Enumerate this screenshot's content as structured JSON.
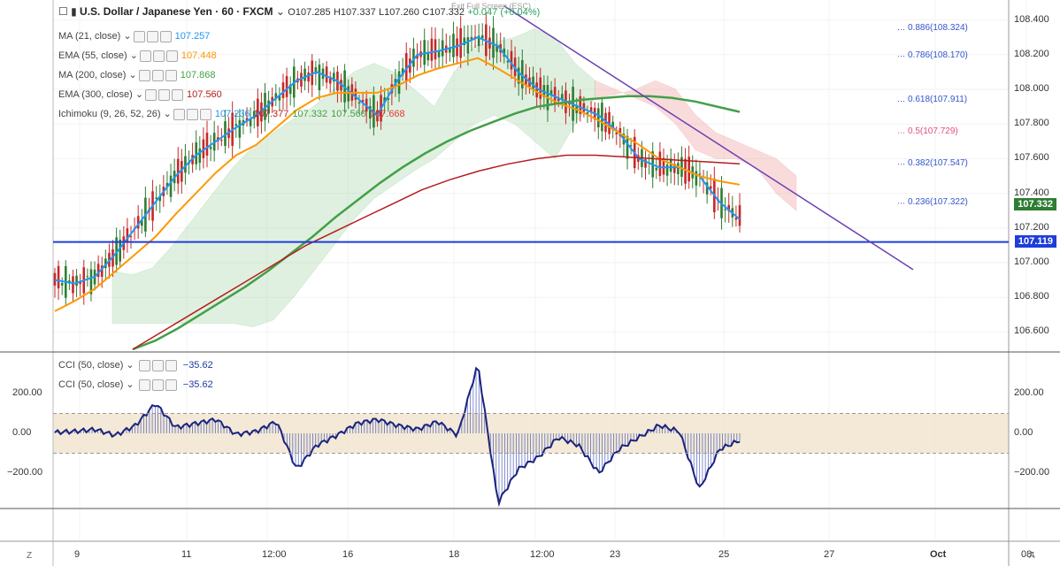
{
  "header": {
    "symbol": "U.S. Dollar / Japanese Yen · 60 · FXCM",
    "open_label": "O",
    "open": "107.285",
    "high_label": "H",
    "high": "107.337",
    "low_label": "L",
    "low": "107.260",
    "close_label": "C",
    "close": "107.332",
    "change": "+0.047 (+0.04%)",
    "exit_fullscreen": "Exit Full Screen (ESC)"
  },
  "indicators": [
    {
      "label": "MA (21, close)",
      "value": "107.257",
      "color": "#2196f3"
    },
    {
      "label": "EMA (55, close)",
      "value": "107.448",
      "color": "#ff9800"
    },
    {
      "label": "MA (200, close)",
      "value": "107.868",
      "color": "#43a047"
    },
    {
      "label": "EMA (300, close)",
      "value": "107.560",
      "color": "#b71c1c"
    },
    {
      "label": "Ichimoku (9, 26, 52, 26)",
      "values": [
        "107.236",
        "107.377",
        "107.332",
        "107.560",
        "107.668"
      ],
      "colors": [
        "#2196f3",
        "#b71c1c",
        "#43a047",
        "#43a047",
        "#e53935"
      ]
    }
  ],
  "cci_legends": [
    {
      "label": "CCI (50, close)",
      "value": "−35.62"
    },
    {
      "label": "CCI (50, close)",
      "value": "−35.62"
    }
  ],
  "price_tags": {
    "last": "107.332",
    "last_color": "#2e7d32",
    "hline": "107.119",
    "hline_color": "#1e3ddb"
  },
  "fib_levels": [
    {
      "label": "0.886(108.324)",
      "price": 108.324,
      "color": "#3355cc"
    },
    {
      "label": "0.786(108.170)",
      "price": 108.17,
      "color": "#3355cc"
    },
    {
      "label": "0.618(107.911)",
      "price": 107.911,
      "color": "#3355cc"
    },
    {
      "label": "0.5(107.729)",
      "price": 107.729,
      "color": "#e0507a"
    },
    {
      "label": "0.382(107.547)",
      "price": 107.547,
      "color": "#3355cc"
    },
    {
      "label": "0.236(107.322)",
      "price": 107.322,
      "color": "#3355cc"
    }
  ],
  "corner_left": "Z",
  "corner_right": "A",
  "chart_data": [
    {
      "type": "line",
      "ylim": [
        106.5,
        108.5
      ],
      "yticks": [
        "108.400",
        "108.200",
        "108.000",
        "107.800",
        "107.600",
        "107.400",
        "107.200",
        "107.000",
        "106.800",
        "106.600"
      ],
      "xticks": [
        "9",
        "11",
        "12:00",
        "16",
        "18",
        "12:00",
        "23",
        "25",
        "27",
        "Oct",
        "08:"
      ],
      "horizontal_line": 107.119,
      "series": [
        {
          "name": "MA (21, close)",
          "values": [
            106.9,
            106.88,
            106.92,
            107.05,
            107.2,
            107.35,
            107.5,
            107.62,
            107.7,
            107.78,
            107.85,
            107.95,
            108.05,
            108.1,
            108.05,
            107.95,
            107.85,
            108.05,
            108.2,
            108.22,
            108.25,
            108.3,
            108.25,
            108.1,
            108.0,
            107.95,
            107.9,
            107.85,
            107.75,
            107.6,
            107.55,
            107.55,
            107.5,
            107.35,
            107.25
          ]
        },
        {
          "name": "EMA (55, close)",
          "values": [
            106.72,
            106.78,
            106.85,
            106.95,
            107.05,
            107.15,
            107.28,
            107.4,
            107.52,
            107.62,
            107.68,
            107.78,
            107.88,
            107.95,
            107.98,
            107.98,
            107.98,
            108.02,
            108.08,
            108.12,
            108.15,
            108.18,
            108.12,
            108.05,
            107.98,
            107.92,
            107.88,
            107.82,
            107.75,
            107.68,
            107.6,
            107.55,
            107.5,
            107.47,
            107.45
          ]
        },
        {
          "name": "MA (200, close)",
          "values": [
            106.5,
            106.55,
            106.62,
            106.7,
            106.78,
            106.86,
            106.95,
            107.05,
            107.15,
            107.26,
            107.36,
            107.46,
            107.55,
            107.63,
            107.7,
            107.76,
            107.81,
            107.86,
            107.9,
            107.92,
            107.94,
            107.95,
            107.96,
            107.96,
            107.95,
            107.93,
            107.9,
            107.87
          ]
        },
        {
          "name": "EMA (300, close)",
          "values": [
            106.5,
            106.6,
            106.7,
            106.8,
            106.9,
            107.0,
            107.1,
            107.18,
            107.26,
            107.34,
            107.42,
            107.48,
            107.53,
            107.57,
            107.6,
            107.62,
            107.62,
            107.61,
            107.6,
            107.59,
            107.58,
            107.57
          ]
        },
        {
          "name": "CCI (50, close)",
          "values": [
            5,
            10,
            20,
            -10,
            40,
            150,
            30,
            50,
            70,
            -5,
            10,
            60,
            -180,
            -60,
            -10,
            50,
            70,
            40,
            20,
            60,
            -10,
            350,
            -350,
            -180,
            -120,
            -20,
            -60,
            -200,
            -80,
            -20,
            40,
            10,
            -280,
            -80,
            -35.62
          ]
        }
      ]
    }
  ]
}
